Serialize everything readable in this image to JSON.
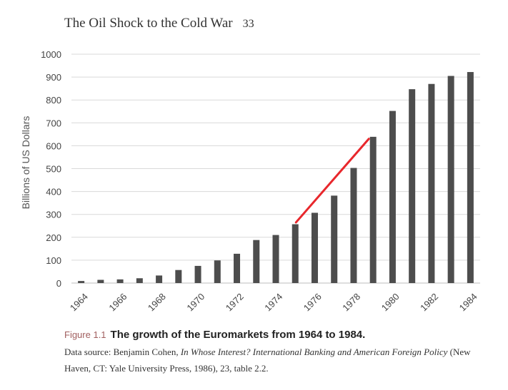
{
  "header": {
    "title": "The Oil Shock to the Cold War",
    "page_number": "33"
  },
  "chart_data": {
    "type": "bar",
    "ylabel": "Billions of US Dollars",
    "ylim": [
      0,
      1000
    ],
    "yticks": [
      0,
      100,
      200,
      300,
      400,
      500,
      600,
      700,
      800,
      900,
      1000
    ],
    "categories": [
      "1964",
      "1965",
      "1966",
      "1967",
      "1968",
      "1969",
      "1970",
      "1971",
      "1972",
      "1973",
      "1974",
      "1975",
      "1976",
      "1977",
      "1978",
      "1979",
      "1980",
      "1981",
      "1982",
      "1983",
      "1984"
    ],
    "tick_labels": [
      "1964",
      "1966",
      "1968",
      "1970",
      "1972",
      "1974",
      "1976",
      "1978",
      "1980",
      "1982",
      "1984"
    ],
    "values": [
      9,
      14,
      16,
      21,
      33,
      57,
      75,
      99,
      128,
      188,
      210,
      257,
      307,
      382,
      503,
      639,
      752,
      847,
      870,
      905,
      922
    ],
    "grid": true,
    "bar_color": "#4d4d4d",
    "annotation": {
      "type": "line",
      "color": "#e8272c",
      "from": [
        "1975",
        265
      ],
      "to": [
        "1979",
        630
      ]
    }
  },
  "caption": {
    "label": "Figure 1.1",
    "title": "The growth of the Euromarkets from 1964 to 1984.",
    "source_prefix": "Data source: Benjamin Cohen, ",
    "source_book": "In Whose Interest? International Banking and American Foreign Policy",
    "source_suffix": " (New Haven, CT: Yale University Press, 1986), 23, table 2.2."
  }
}
